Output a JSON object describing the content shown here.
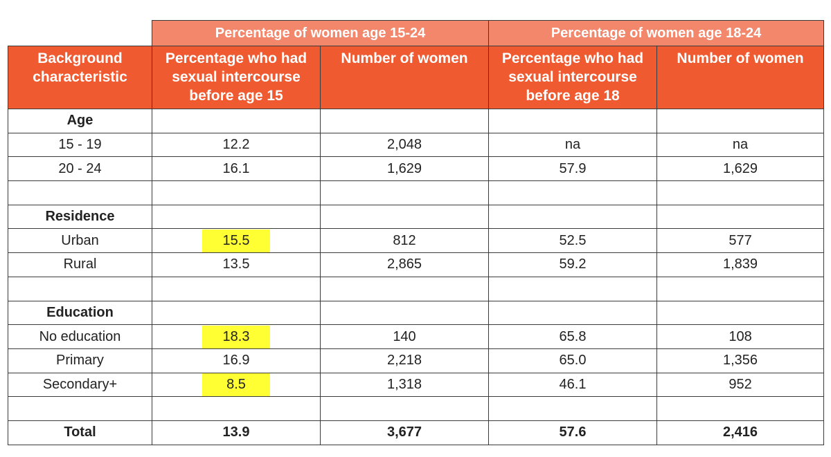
{
  "group_headers": [
    "Percentage of women age 15-24",
    "Percentage of women age 18-24"
  ],
  "column_headers": [
    [
      "Background",
      "characteristic"
    ],
    [
      "Percentage who had",
      "sexual intercourse",
      "before age 15"
    ],
    [
      "Number of women"
    ],
    [
      "Percentage who had",
      "sexual intercourse",
      "before age 18"
    ],
    [
      "Number of women"
    ]
  ],
  "rows": [
    {
      "type": "section",
      "label": "Age",
      "values": [
        "",
        "",
        "",
        ""
      ]
    },
    {
      "type": "data",
      "label": "15 - 19",
      "values": [
        "12.2",
        "2,048",
        "na",
        "na"
      ],
      "highlight": false
    },
    {
      "type": "data",
      "label": "20 - 24",
      "values": [
        "16.1",
        "1,629",
        "57.9",
        "1,629"
      ],
      "highlight": false
    },
    {
      "type": "blank",
      "label": "",
      "values": [
        "",
        "",
        "",
        ""
      ]
    },
    {
      "type": "section",
      "label": "Residence",
      "values": [
        "",
        "",
        "",
        ""
      ]
    },
    {
      "type": "data",
      "label": "Urban",
      "values": [
        "15.5",
        "812",
        "52.5",
        "577"
      ],
      "highlight": true
    },
    {
      "type": "data",
      "label": "Rural",
      "values": [
        "13.5",
        "2,865",
        "59.2",
        "1,839"
      ],
      "highlight": false
    },
    {
      "type": "blank",
      "label": "",
      "values": [
        "",
        "",
        "",
        ""
      ]
    },
    {
      "type": "section",
      "label": "Education",
      "values": [
        "",
        "",
        "",
        ""
      ]
    },
    {
      "type": "data",
      "label": "No education",
      "values": [
        "18.3",
        "140",
        "65.8",
        "108"
      ],
      "highlight": true
    },
    {
      "type": "data",
      "label": "Primary",
      "values": [
        "16.9",
        "2,218",
        "65.0",
        "1,356"
      ],
      "highlight": false
    },
    {
      "type": "data",
      "label": "Secondary+",
      "values": [
        "8.5",
        "1,318",
        "46.1",
        "952"
      ],
      "highlight": true
    },
    {
      "type": "blank",
      "label": "",
      "values": [
        "",
        "",
        "",
        ""
      ]
    },
    {
      "type": "total",
      "label": "Total",
      "values": [
        "13.9",
        "3,677",
        "57.6",
        "2,416"
      ],
      "highlight": false
    }
  ],
  "colors": {
    "group_header_bg": "#f2876b",
    "column_header_bg": "#ef5a30",
    "header_text": "#ffffff",
    "highlight": "#ffff33"
  }
}
